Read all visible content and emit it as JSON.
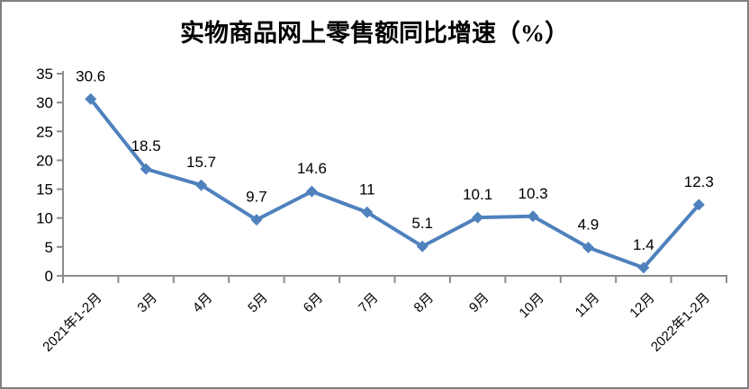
{
  "chart_data": {
    "type": "line",
    "title": "实物商品网上零售额同比增速（%）",
    "categories": [
      "2021年1-2月",
      "3月",
      "4月",
      "5月",
      "6月",
      "7月",
      "8月",
      "9月",
      "10月",
      "11月",
      "12月",
      "2022年1-2月"
    ],
    "values": [
      30.6,
      18.5,
      15.7,
      9.7,
      14.6,
      11,
      5.1,
      10.1,
      10.3,
      4.9,
      1.4,
      12.3
    ],
    "data_labels": [
      "30.6",
      "18.5",
      "15.7",
      "9.7",
      "14.6",
      "11",
      "5.1",
      "10.1",
      "10.3",
      "4.9",
      "1.4",
      "12.3"
    ],
    "xlabel": "",
    "ylabel": "",
    "ylim": [
      0,
      35
    ],
    "y_ticks": [
      0,
      5,
      10,
      15,
      20,
      25,
      30,
      35
    ],
    "grid": false,
    "legend": "none",
    "marker": "diamond",
    "x_label_rotation": -45,
    "colors": {
      "line": "#4F81BD",
      "marker": "#4F81BD",
      "axis": "#8C8C8C",
      "text": "#000000",
      "frame_border": "#808080",
      "background": "#FFFFFF"
    }
  }
}
